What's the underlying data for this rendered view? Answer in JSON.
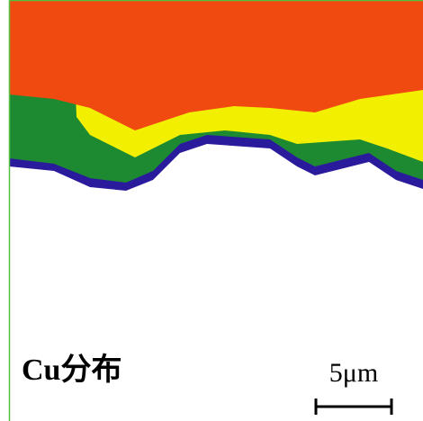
{
  "label": "Cu分布",
  "scale_bar": "5μm"
}
